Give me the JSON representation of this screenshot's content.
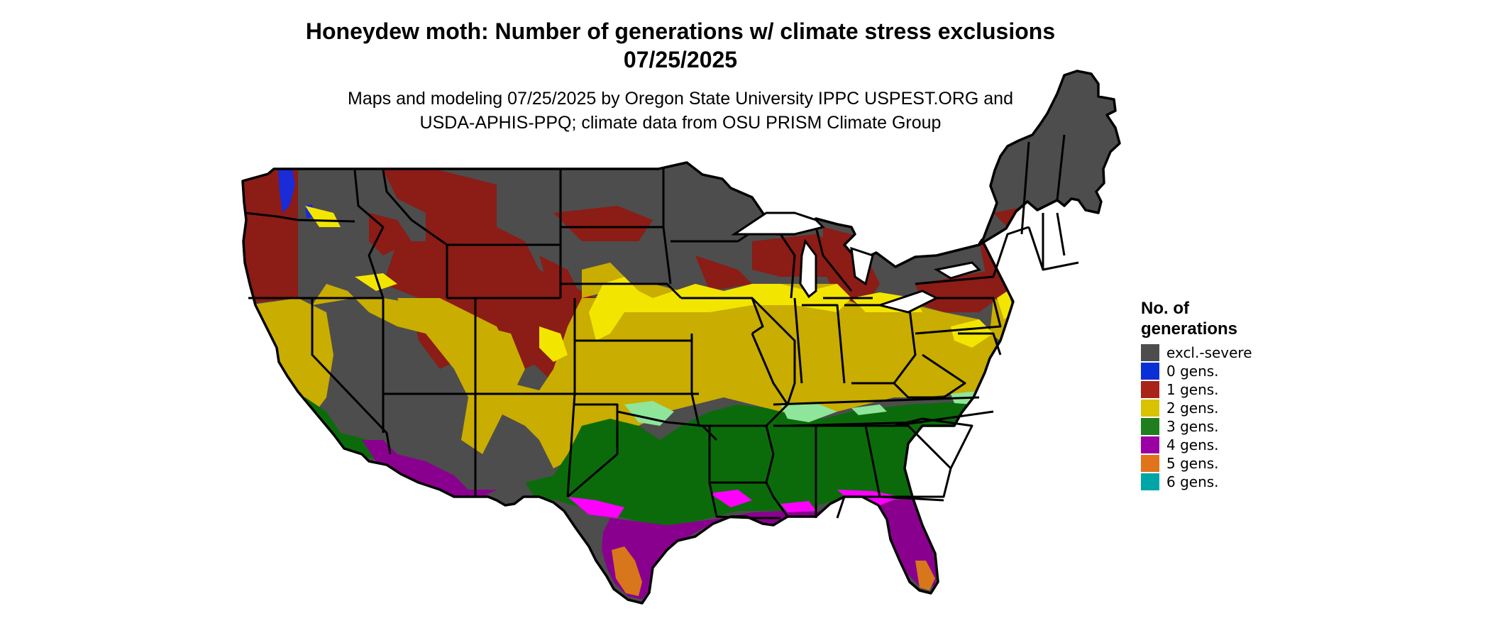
{
  "title": {
    "line1": "Honeydew moth: Number of generations w/ climate stress exclusions",
    "line2": "07/25/2025"
  },
  "subtitle": {
    "line1": "Maps and modeling 07/25/2025 by Oregon State University IPPC USPEST.ORG and",
    "line2": "USDA-APHIS-PPQ; climate data from OSU PRISM Climate Group"
  },
  "legend": {
    "title_line1": "No. of",
    "title_line2": "generations",
    "items": [
      {
        "label": "excl.-severe",
        "color": "#4d4d4d",
        "icon": "gray-swatch"
      },
      {
        "label": "0 gens.",
        "color": "#0a2fd6",
        "icon": "blue-swatch"
      },
      {
        "label": "1 gens.",
        "color": "#a82318",
        "icon": "red-swatch"
      },
      {
        "label": "2 gens.",
        "color": "#d9c200",
        "icon": "yellow-swatch"
      },
      {
        "label": "3 gens.",
        "color": "#1f7f1f",
        "icon": "green-swatch"
      },
      {
        "label": "4 gens.",
        "color": "#9b00a5",
        "icon": "purple-swatch"
      },
      {
        "label": "5 gens.",
        "color": "#e0731b",
        "icon": "orange-swatch"
      },
      {
        "label": "6 gens.",
        "color": "#00a5a8",
        "icon": "teal-swatch"
      }
    ]
  },
  "map_colors": {
    "excl_severe": "#4d4d4d",
    "gen1": "#8c1c16",
    "gen2": "#c9ad00",
    "gen2_light": "#f2e600",
    "gen3": "#0b6b0b",
    "gen3_light": "#8fe59a",
    "gen4": "#8a008e",
    "gen4_bright": "#ff00ff",
    "gen5": "#d8761c",
    "gen0": "#1a2bd8"
  }
}
